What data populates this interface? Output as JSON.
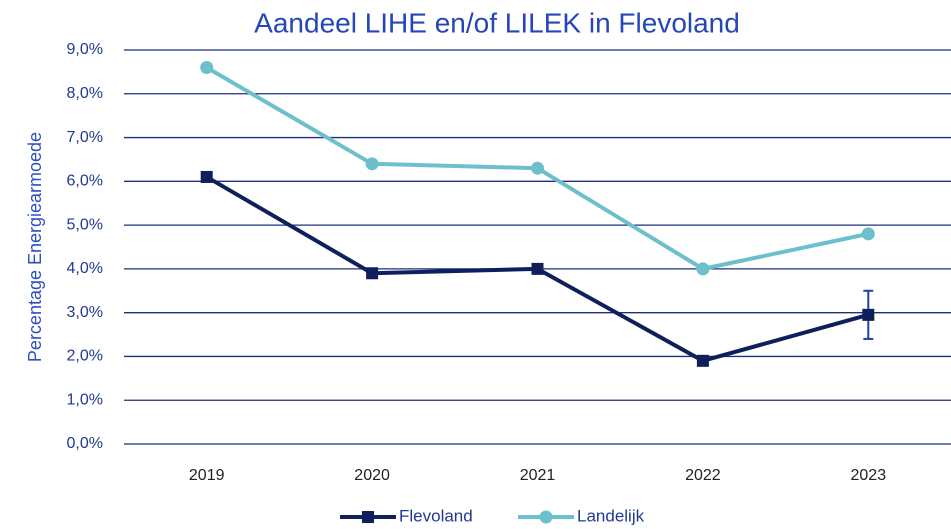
{
  "chart_data": {
    "type": "line",
    "title": "Aandeel LIHE en/of LILEK in Flevoland",
    "y_label": "Percentage Energiearmoede",
    "categories": [
      "2019",
      "2020",
      "2021",
      "2022",
      "2023"
    ],
    "series": [
      {
        "name": "Flevoland",
        "color": "#0f1f5c",
        "marker": "square",
        "values": [
          6.1,
          3.9,
          4.0,
          1.9,
          2.95
        ],
        "errors": [
          null,
          null,
          null,
          null,
          0.55
        ],
        "error_color": "#1f3fae"
      },
      {
        "name": "Landelijk",
        "color": "#6cc0cc",
        "marker": "circle",
        "values": [
          8.6,
          6.4,
          6.3,
          4.0,
          4.8
        ]
      }
    ],
    "ylim": [
      0,
      9
    ],
    "yticks": [
      {
        "value": 0,
        "label": "0,0%"
      },
      {
        "value": 1,
        "label": "1,0%"
      },
      {
        "value": 2,
        "label": "2,0%"
      },
      {
        "value": 3,
        "label": "3,0%"
      },
      {
        "value": 4,
        "label": "4,0%"
      },
      {
        "value": 5,
        "label": "5,0%"
      },
      {
        "value": 6,
        "label": "6,0%"
      },
      {
        "value": 7,
        "label": "7,0%"
      },
      {
        "value": 8,
        "label": "8,0%"
      },
      {
        "value": 9,
        "label": "9,0%"
      }
    ],
    "grid": true,
    "legend": "bottom"
  }
}
